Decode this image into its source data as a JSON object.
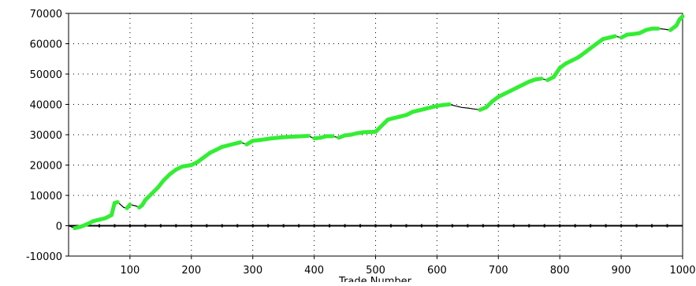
{
  "chart_data": {
    "type": "line",
    "title": "",
    "xlabel": "Trade Number",
    "ylabel": "",
    "xlim": [
      0,
      1000
    ],
    "ylim": [
      -10000,
      70000
    ],
    "x_ticks": [
      100,
      200,
      300,
      400,
      500,
      600,
      700,
      800,
      900,
      1000
    ],
    "y_ticks": [
      -10000,
      0,
      10000,
      20000,
      30000,
      40000,
      50000,
      60000,
      70000
    ],
    "grid": true,
    "colors": {
      "line": "#000000",
      "highlight": "#33ee33",
      "zero_line": "#000000",
      "grid": "#000000"
    },
    "series": [
      {
        "values": [
          [
            0,
            0
          ],
          [
            10,
            -800
          ],
          [
            20,
            -300
          ],
          [
            30,
            500
          ],
          [
            40,
            1500
          ],
          [
            50,
            2000
          ],
          [
            60,
            2500
          ],
          [
            70,
            3500
          ],
          [
            75,
            7500
          ],
          [
            80,
            7800
          ],
          [
            90,
            6000
          ],
          [
            95,
            5800
          ],
          [
            100,
            7000
          ],
          [
            110,
            6500
          ],
          [
            115,
            6000
          ],
          [
            120,
            6800
          ],
          [
            125,
            8500
          ],
          [
            135,
            10500
          ],
          [
            145,
            12500
          ],
          [
            155,
            15000
          ],
          [
            165,
            17000
          ],
          [
            175,
            18500
          ],
          [
            185,
            19500
          ],
          [
            200,
            20000
          ],
          [
            210,
            21000
          ],
          [
            220,
            22500
          ],
          [
            230,
            24000
          ],
          [
            240,
            25000
          ],
          [
            250,
            26000
          ],
          [
            260,
            26500
          ],
          [
            270,
            27000
          ],
          [
            280,
            27500
          ],
          [
            290,
            26800
          ],
          [
            300,
            28000
          ],
          [
            310,
            28200
          ],
          [
            320,
            28500
          ],
          [
            330,
            28800
          ],
          [
            350,
            29200
          ],
          [
            370,
            29400
          ],
          [
            390,
            29600
          ],
          [
            400,
            28800
          ],
          [
            410,
            29000
          ],
          [
            420,
            29500
          ],
          [
            430,
            29500
          ],
          [
            440,
            29000
          ],
          [
            450,
            29800
          ],
          [
            460,
            30000
          ],
          [
            470,
            30500
          ],
          [
            480,
            30800
          ],
          [
            500,
            31000
          ],
          [
            510,
            33000
          ],
          [
            520,
            35000
          ],
          [
            530,
            35500
          ],
          [
            540,
            36000
          ],
          [
            550,
            36500
          ],
          [
            560,
            37500
          ],
          [
            570,
            38000
          ],
          [
            580,
            38500
          ],
          [
            590,
            39000
          ],
          [
            600,
            39500
          ],
          [
            610,
            39800
          ],
          [
            620,
            40000
          ],
          [
            630,
            39500
          ],
          [
            640,
            39000
          ],
          [
            650,
            38800
          ],
          [
            660,
            38500
          ],
          [
            670,
            38200
          ],
          [
            680,
            39000
          ],
          [
            690,
            41000
          ],
          [
            700,
            42500
          ],
          [
            710,
            43500
          ],
          [
            720,
            44500
          ],
          [
            730,
            45500
          ],
          [
            740,
            46500
          ],
          [
            750,
            47500
          ],
          [
            760,
            48200
          ],
          [
            770,
            48500
          ],
          [
            780,
            48000
          ],
          [
            790,
            49000
          ],
          [
            800,
            52000
          ],
          [
            810,
            53500
          ],
          [
            820,
            54500
          ],
          [
            830,
            55500
          ],
          [
            840,
            57000
          ],
          [
            850,
            58500
          ],
          [
            860,
            60000
          ],
          [
            870,
            61500
          ],
          [
            880,
            62000
          ],
          [
            890,
            62500
          ],
          [
            900,
            62000
          ],
          [
            910,
            63000
          ],
          [
            920,
            63200
          ],
          [
            930,
            63500
          ],
          [
            940,
            64500
          ],
          [
            950,
            65000
          ],
          [
            960,
            65000
          ],
          [
            970,
            64800
          ],
          [
            980,
            64500
          ],
          [
            990,
            66000
          ],
          [
            995,
            68000
          ],
          [
            1000,
            69000
          ]
        ]
      }
    ]
  }
}
